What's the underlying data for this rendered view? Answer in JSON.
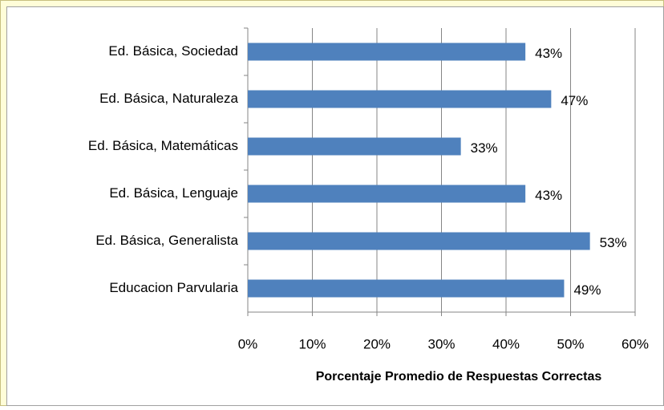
{
  "chart_data": {
    "type": "bar",
    "orientation": "horizontal",
    "x_label": "Porcentaje  Promedio de Respuestas  Correctas",
    "categories": [
      "Ed. Básica, Sociedad",
      "Ed. Básica, Naturaleza",
      "Ed. Básica, Matemáticas",
      "Ed. Básica, Lenguaje",
      "Ed. Básica, Generalista",
      "Educacion Parvularia"
    ],
    "values": [
      43,
      47,
      33,
      43,
      53,
      49
    ],
    "value_labels": [
      "43%",
      "47%",
      "33%",
      "43%",
      "53%",
      "49%"
    ],
    "color": "#4f81bd",
    "xlim": [
      0,
      60
    ],
    "xticks": [
      {
        "value": 0,
        "label": "0%"
      },
      {
        "value": 10,
        "label": "10%"
      },
      {
        "value": 20,
        "label": "20%"
      },
      {
        "value": 30,
        "label": "30%"
      },
      {
        "value": 40,
        "label": "40%"
      },
      {
        "value": 50,
        "label": "50%"
      },
      {
        "value": 60,
        "label": "60%"
      }
    ],
    "grid": true
  }
}
